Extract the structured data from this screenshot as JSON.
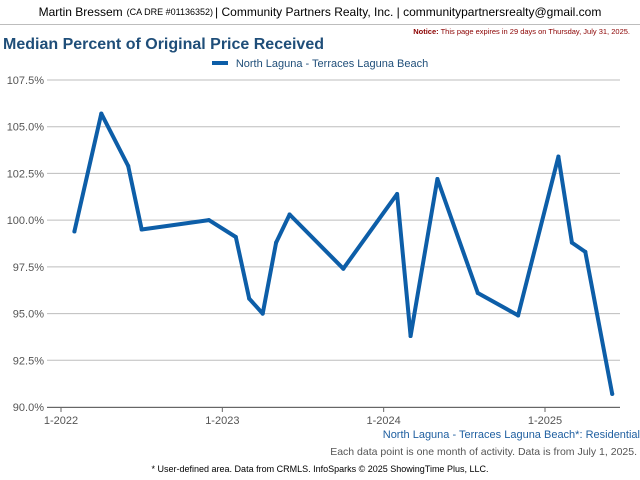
{
  "header": {
    "agent_name": "Martin Bressem",
    "dre": "(CA DRE #01136352)",
    "company_email": "| Community Partners Realty, Inc. | communitypartnersrealty@gmail.com"
  },
  "notice": {
    "label": "Notice:",
    "text": "This page expires in 29 days on Thursday, July 31, 2025."
  },
  "colors": {
    "series": "#0d5ea8",
    "title": "#1f4e79"
  },
  "chart_data": {
    "type": "line",
    "title": "Median Percent of Original Price Received",
    "subtitle": "North Laguna - Terraces Laguna Beach*: Residential",
    "legend_position": "top-center",
    "grid": true,
    "x_ticks": [
      "1-2022",
      "1-2023",
      "1-2024",
      "1-2025"
    ],
    "y_ticks": [
      "90.0%",
      "92.5%",
      "95.0%",
      "97.5%",
      "100.0%",
      "102.5%",
      "105.0%",
      "107.5%"
    ],
    "ylim": [
      90.0,
      108.5
    ],
    "xlim": [
      "2021-12",
      "2025-07"
    ],
    "series": [
      {
        "name": "North Laguna - Terraces Laguna Beach",
        "points": [
          {
            "x": "2022-02",
            "y": 99.4
          },
          {
            "x": "2022-04",
            "y": 105.7
          },
          {
            "x": "2022-06",
            "y": 102.9
          },
          {
            "x": "2022-07",
            "y": 99.5
          },
          {
            "x": "2022-12",
            "y": 100.0
          },
          {
            "x": "2023-02",
            "y": 99.1
          },
          {
            "x": "2023-03",
            "y": 95.8
          },
          {
            "x": "2023-04",
            "y": 95.0
          },
          {
            "x": "2023-05",
            "y": 98.8
          },
          {
            "x": "2023-06",
            "y": 100.3
          },
          {
            "x": "2023-10",
            "y": 97.4
          },
          {
            "x": "2024-02",
            "y": 101.4
          },
          {
            "x": "2024-03",
            "y": 93.8
          },
          {
            "x": "2024-05",
            "y": 102.2
          },
          {
            "x": "2024-08",
            "y": 96.1
          },
          {
            "x": "2024-11",
            "y": 94.9
          },
          {
            "x": "2025-02",
            "y": 103.4
          },
          {
            "x": "2025-03",
            "y": 98.8
          },
          {
            "x": "2025-04",
            "y": 98.3
          },
          {
            "x": "2025-06",
            "y": 90.7
          }
        ]
      }
    ]
  },
  "note": "Each data point is one month of activity. Data is from July 1, 2025.",
  "footer": "* User-defined area. Data from CRMLS. InfoSparks © 2025 ShowingTime Plus, LLC."
}
